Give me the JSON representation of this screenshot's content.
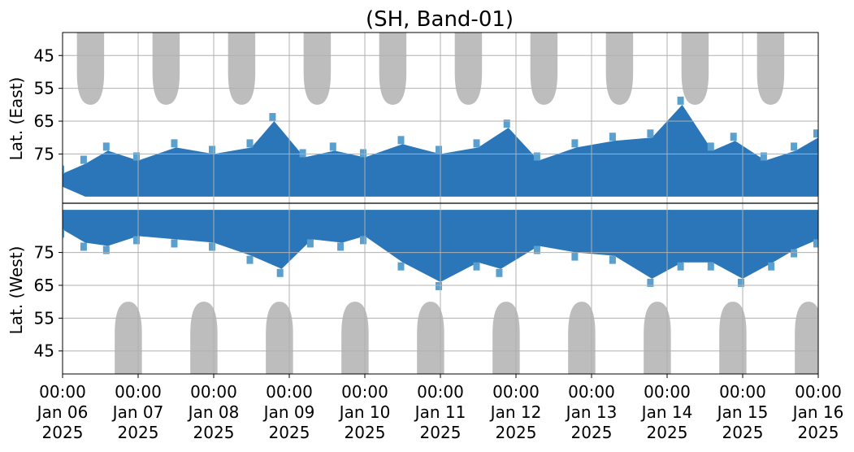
{
  "chart_data": {
    "type": "heatmap",
    "title": "(SH, Band-01)",
    "ylabel_upper": "Lat. (East)",
    "ylabel_lower": "Lat. (West)",
    "x": {
      "start": "2025-01-06T00:00",
      "end": "2025-01-16T00:00",
      "tick_labels": [
        {
          "time": "00:00",
          "date": "Jan 06",
          "year": "2025"
        },
        {
          "time": "00:00",
          "date": "Jan 07",
          "year": "2025"
        },
        {
          "time": "00:00",
          "date": "Jan 08",
          "year": "2025"
        },
        {
          "time": "00:00",
          "date": "Jan 09",
          "year": "2025"
        },
        {
          "time": "00:00",
          "date": "Jan 10",
          "year": "2025"
        },
        {
          "time": "00:00",
          "date": "Jan 11",
          "year": "2025"
        },
        {
          "time": "00:00",
          "date": "Jan 12",
          "year": "2025"
        },
        {
          "time": "00:00",
          "date": "Jan 13",
          "year": "2025"
        },
        {
          "time": "00:00",
          "date": "Jan 14",
          "year": "2025"
        },
        {
          "time": "00:00",
          "date": "Jan 15",
          "year": "2025"
        },
        {
          "time": "00:00",
          "date": "Jan 16",
          "year": "2025"
        }
      ]
    },
    "y_upper": {
      "range": [
        90,
        38
      ],
      "ticks": [
        45,
        55,
        65,
        75
      ]
    },
    "y_lower": {
      "range": [
        90,
        38
      ],
      "ticks": [
        75,
        65,
        55,
        45
      ]
    },
    "grid": true,
    "colors": {
      "activity_dark": "#1f6fb4",
      "activity_light": "#5aa0cf",
      "sunlit_region": "#bdbdbd",
      "equator_line": "#000000",
      "grid": "#b0b0b0"
    },
    "sunlit_regions_upper_center_days": [
      0.37,
      1.37,
      2.37,
      3.37,
      4.37,
      5.37,
      6.37,
      7.37,
      8.37,
      9.37
    ],
    "sunlit_regions_lower_center_days": [
      0.87,
      1.87,
      2.87,
      3.87,
      4.87,
      5.87,
      6.87,
      7.87,
      8.87,
      9.87
    ],
    "sunlit_region_min_lat": 60,
    "activity_upper": [
      {
        "day": 0.0,
        "lat_min": 81,
        "lat_max": 85
      },
      {
        "day": 0.3,
        "lat_min": 78,
        "lat_max": 88
      },
      {
        "day": 0.6,
        "lat_min": 74,
        "lat_max": 88
      },
      {
        "day": 1.0,
        "lat_min": 77,
        "lat_max": 88
      },
      {
        "day": 1.5,
        "lat_min": 73,
        "lat_max": 88
      },
      {
        "day": 2.0,
        "lat_min": 75,
        "lat_max": 88
      },
      {
        "day": 2.5,
        "lat_min": 73,
        "lat_max": 88
      },
      {
        "day": 2.8,
        "lat_min": 65,
        "lat_max": 88
      },
      {
        "day": 3.2,
        "lat_min": 76,
        "lat_max": 88
      },
      {
        "day": 3.6,
        "lat_min": 74,
        "lat_max": 88
      },
      {
        "day": 4.0,
        "lat_min": 76,
        "lat_max": 88
      },
      {
        "day": 4.5,
        "lat_min": 72,
        "lat_max": 88
      },
      {
        "day": 5.0,
        "lat_min": 75,
        "lat_max": 88
      },
      {
        "day": 5.5,
        "lat_min": 73,
        "lat_max": 88
      },
      {
        "day": 5.9,
        "lat_min": 67,
        "lat_max": 88
      },
      {
        "day": 6.3,
        "lat_min": 77,
        "lat_max": 88
      },
      {
        "day": 6.8,
        "lat_min": 73,
        "lat_max": 88
      },
      {
        "day": 7.3,
        "lat_min": 71,
        "lat_max": 88
      },
      {
        "day": 7.8,
        "lat_min": 70,
        "lat_max": 88
      },
      {
        "day": 8.2,
        "lat_min": 60,
        "lat_max": 88
      },
      {
        "day": 8.6,
        "lat_min": 74,
        "lat_max": 88
      },
      {
        "day": 8.9,
        "lat_min": 71,
        "lat_max": 88
      },
      {
        "day": 9.3,
        "lat_min": 77,
        "lat_max": 88
      },
      {
        "day": 9.7,
        "lat_min": 74,
        "lat_max": 88
      },
      {
        "day": 10.0,
        "lat_min": 70,
        "lat_max": 88
      }
    ],
    "activity_lower": [
      {
        "day": 0.0,
        "lat_min": 82,
        "lat_max": 88
      },
      {
        "day": 0.3,
        "lat_min": 78,
        "lat_max": 88
      },
      {
        "day": 0.6,
        "lat_min": 77,
        "lat_max": 88
      },
      {
        "day": 1.0,
        "lat_min": 80,
        "lat_max": 88
      },
      {
        "day": 1.5,
        "lat_min": 79,
        "lat_max": 88
      },
      {
        "day": 2.0,
        "lat_min": 78,
        "lat_max": 88
      },
      {
        "day": 2.5,
        "lat_min": 74,
        "lat_max": 88
      },
      {
        "day": 2.9,
        "lat_min": 70,
        "lat_max": 88
      },
      {
        "day": 3.3,
        "lat_min": 79,
        "lat_max": 88
      },
      {
        "day": 3.7,
        "lat_min": 78,
        "lat_max": 88
      },
      {
        "day": 4.0,
        "lat_min": 80,
        "lat_max": 88
      },
      {
        "day": 4.5,
        "lat_min": 72,
        "lat_max": 88
      },
      {
        "day": 5.0,
        "lat_min": 66,
        "lat_max": 88
      },
      {
        "day": 5.5,
        "lat_min": 72,
        "lat_max": 88
      },
      {
        "day": 5.8,
        "lat_min": 70,
        "lat_max": 88
      },
      {
        "day": 6.3,
        "lat_min": 77,
        "lat_max": 88
      },
      {
        "day": 6.8,
        "lat_min": 75,
        "lat_max": 88
      },
      {
        "day": 7.3,
        "lat_min": 74,
        "lat_max": 88
      },
      {
        "day": 7.8,
        "lat_min": 67,
        "lat_max": 88
      },
      {
        "day": 8.2,
        "lat_min": 72,
        "lat_max": 88
      },
      {
        "day": 8.6,
        "lat_min": 72,
        "lat_max": 88
      },
      {
        "day": 9.0,
        "lat_min": 67,
        "lat_max": 88
      },
      {
        "day": 9.4,
        "lat_min": 72,
        "lat_max": 88
      },
      {
        "day": 9.7,
        "lat_min": 76,
        "lat_max": 88
      },
      {
        "day": 10.0,
        "lat_min": 79,
        "lat_max": 88
      }
    ]
  }
}
